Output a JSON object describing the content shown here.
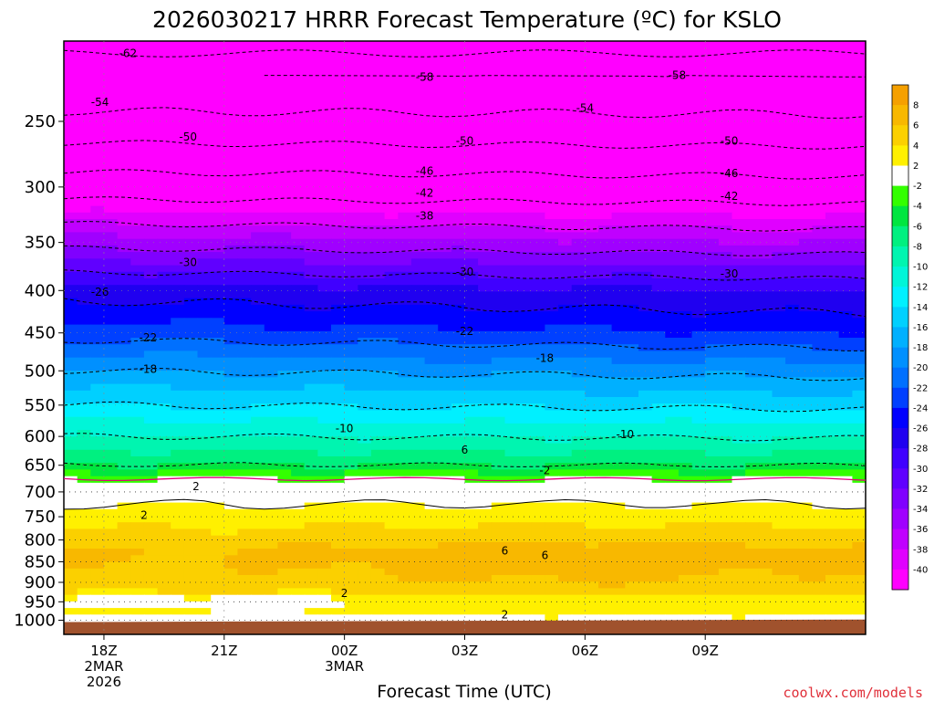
{
  "chart_data": {
    "type": "heatmap",
    "title": "2026030217 HRRR Forecast Temperature (ºC) for KSLO",
    "xlabel": "Forecast Time (UTC)",
    "credit": "coolwx.com/models",
    "y_ticks": [
      "250",
      "300",
      "350",
      "400",
      "450",
      "500",
      "550",
      "600",
      "650",
      "700",
      "750",
      "800",
      "850",
      "900",
      "950",
      "1000"
    ],
    "x_ticks": [
      {
        "label": "18Z",
        "line2": "2MAR",
        "line3": "2026"
      },
      {
        "label": "21Z",
        "line2": "",
        "line3": ""
      },
      {
        "label": "00Z",
        "line2": "3MAR",
        "line3": ""
      },
      {
        "label": "03Z",
        "line2": "",
        "line3": ""
      },
      {
        "label": "06Z",
        "line2": "",
        "line3": ""
      },
      {
        "label": "09Z",
        "line2": "",
        "line3": ""
      }
    ],
    "x_hours": [
      -1,
      0,
      1,
      2,
      3,
      4,
      5,
      6,
      7,
      8,
      9,
      10,
      11,
      12,
      13,
      14,
      15,
      16,
      17,
      18,
      19
    ],
    "profile_pressure": [
      1000,
      975,
      950,
      925,
      900,
      875,
      850,
      825,
      800,
      775,
      750,
      725,
      700,
      675,
      650,
      600,
      550,
      500,
      450,
      400,
      350,
      300,
      250,
      200
    ],
    "profile_temp": [
      1,
      3,
      2,
      4,
      5,
      5.5,
      6,
      6,
      5,
      4,
      3,
      2,
      1,
      -2,
      -6,
      -10,
      -14,
      -18,
      -23,
      -27,
      -35,
      -44,
      -53,
      -61
    ],
    "colorbar": {
      "labels": [
        "8",
        "6",
        "4",
        "2",
        "-2",
        "-4",
        "-6",
        "-8",
        "-10",
        "-12",
        "-14",
        "-16",
        "-18",
        "-20",
        "-22",
        "-24",
        "-26",
        "-28",
        "-30",
        "-32",
        "-34",
        "-36",
        "-38",
        "-40"
      ],
      "colors": [
        "#f5a000",
        "#f8b800",
        "#fbd000",
        "#fff000",
        "#ffffff",
        "#33ff00",
        "#00e640",
        "#00f080",
        "#00f5b0",
        "#00f5d8",
        "#00f0ff",
        "#00d0ff",
        "#00b0ff",
        "#0090ff",
        "#0070ff",
        "#0040ff",
        "#0000ff",
        "#2000f0",
        "#4000ff",
        "#6000ff",
        "#8000ff",
        "#a000ff",
        "#c000ff",
        "#e000ff",
        "#ff00ff"
      ]
    },
    "contour_labels": [
      {
        "text": "-62",
        "hour": 0.6,
        "p": 207
      },
      {
        "text": "-58",
        "hour": 8.0,
        "p": 221
      },
      {
        "text": "-58",
        "hour": 14.3,
        "p": 220
      },
      {
        "text": "-54",
        "hour": -0.1,
        "p": 237
      },
      {
        "text": "-54",
        "hour": 12.0,
        "p": 241
      },
      {
        "text": "-50",
        "hour": 2.1,
        "p": 261
      },
      {
        "text": "-50",
        "hour": 9.0,
        "p": 264
      },
      {
        "text": "-50",
        "hour": 15.6,
        "p": 264
      },
      {
        "text": "-46",
        "hour": 8.0,
        "p": 287
      },
      {
        "text": "-46",
        "hour": 15.6,
        "p": 289
      },
      {
        "text": "-42",
        "hour": 8.0,
        "p": 305
      },
      {
        "text": "-42",
        "hour": 15.6,
        "p": 308
      },
      {
        "text": "-38",
        "hour": 8.0,
        "p": 325
      },
      {
        "text": "-30",
        "hour": 2.1,
        "p": 370
      },
      {
        "text": "-30",
        "hour": 9.0,
        "p": 380
      },
      {
        "text": "-30",
        "hour": 15.6,
        "p": 382
      },
      {
        "text": "-26",
        "hour": -0.1,
        "p": 402
      },
      {
        "text": "-22",
        "hour": 1.1,
        "p": 456
      },
      {
        "text": "-22",
        "hour": 9.0,
        "p": 448
      },
      {
        "text": "-18",
        "hour": 1.1,
        "p": 498
      },
      {
        "text": "-18",
        "hour": 11.0,
        "p": 483
      },
      {
        "text": "-10",
        "hour": 6.0,
        "p": 587
      },
      {
        "text": "-10",
        "hour": 13.0,
        "p": 597
      },
      {
        "text": "6",
        "hour": 9.0,
        "p": 623
      },
      {
        "text": "-2",
        "hour": 11.0,
        "p": 660
      },
      {
        "text": "2",
        "hour": 2.3,
        "p": 690
      },
      {
        "text": "2",
        "hour": 1.0,
        "p": 747
      },
      {
        "text": "6",
        "hour": 10.0,
        "p": 825
      },
      {
        "text": "6",
        "hour": 11.0,
        "p": 835
      },
      {
        "text": "2",
        "hour": 6.0,
        "p": 928
      },
      {
        "text": "2",
        "hour": 10.0,
        "p": 985
      }
    ]
  }
}
